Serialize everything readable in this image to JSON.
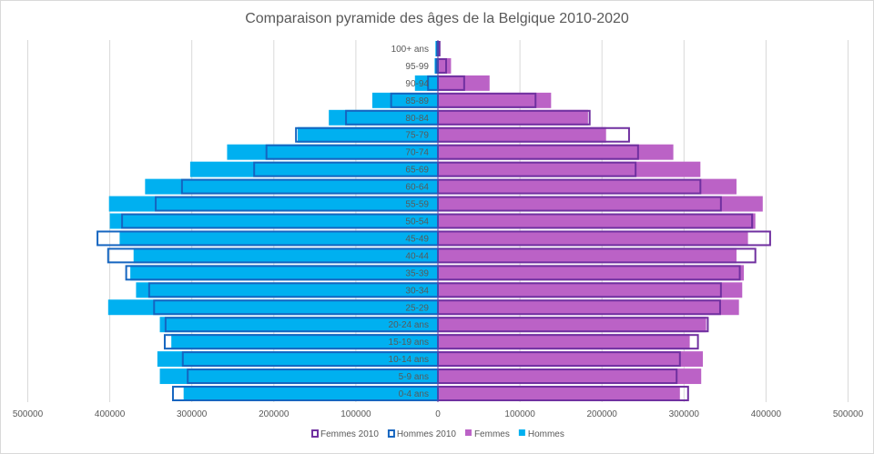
{
  "chart_data": {
    "type": "bar",
    "orientation": "horizontal-pyramid",
    "title": "Comparaison pyramide des âges de la Belgique 2010-2020",
    "xlabel": "",
    "ylabel": "",
    "xlim": [
      -500000,
      500000
    ],
    "x_ticks": [
      -500000,
      -400000,
      -300000,
      -200000,
      -100000,
      0,
      100000,
      200000,
      300000,
      400000,
      500000
    ],
    "x_tick_labels": [
      "500000",
      "400000",
      "300000",
      "200000",
      "100000",
      "0",
      "100000",
      "200000",
      "300000",
      "400000",
      "500000"
    ],
    "grid": true,
    "legend_position": "bottom",
    "categories": [
      "0-4 ans",
      "5-9 ans",
      "10-14 ans",
      "15-19 ans",
      "20-24 ans",
      "25-29",
      "30-34",
      "35-39",
      "40-44",
      "45-49",
      "50-54",
      "55-59",
      "60-64",
      "65-69",
      "70-74",
      "75-79",
      "80-84",
      "85-89",
      "90-94",
      "95-99",
      "100+ ans"
    ],
    "series": [
      {
        "name": "Femmes 2010",
        "side": "right",
        "style": "outline",
        "color": "#7030a0",
        "values": [
          305000,
          291000,
          295000,
          317000,
          329000,
          344000,
          345000,
          368000,
          387000,
          405000,
          383000,
          345000,
          320000,
          241000,
          244000,
          233000,
          185000,
          119000,
          32000,
          10000,
          2000
        ]
      },
      {
        "name": "Hommes 2010",
        "side": "left",
        "style": "outline",
        "color": "#1565c0",
        "values": [
          323000,
          305000,
          311000,
          333000,
          332000,
          346000,
          352000,
          380000,
          402000,
          415000,
          385000,
          344000,
          312000,
          224000,
          209000,
          173000,
          112000,
          57000,
          12000,
          2000,
          1000
        ]
      },
      {
        "name": "Femmes",
        "side": "right",
        "style": "fill",
        "color": "#bb62c6",
        "values": [
          295000,
          321000,
          323000,
          307000,
          327000,
          367000,
          371000,
          373000,
          364000,
          378000,
          387000,
          396000,
          364000,
          320000,
          287000,
          205000,
          183000,
          138000,
          63000,
          16000,
          2000
        ]
      },
      {
        "name": "Hommes",
        "side": "left",
        "style": "fill",
        "color": "#00b0f0",
        "values": [
          310000,
          339000,
          342000,
          325000,
          339000,
          402000,
          368000,
          375000,
          371000,
          388000,
          400000,
          401000,
          357000,
          302000,
          257000,
          171000,
          133000,
          80000,
          28000,
          4000,
          3000
        ]
      }
    ]
  }
}
